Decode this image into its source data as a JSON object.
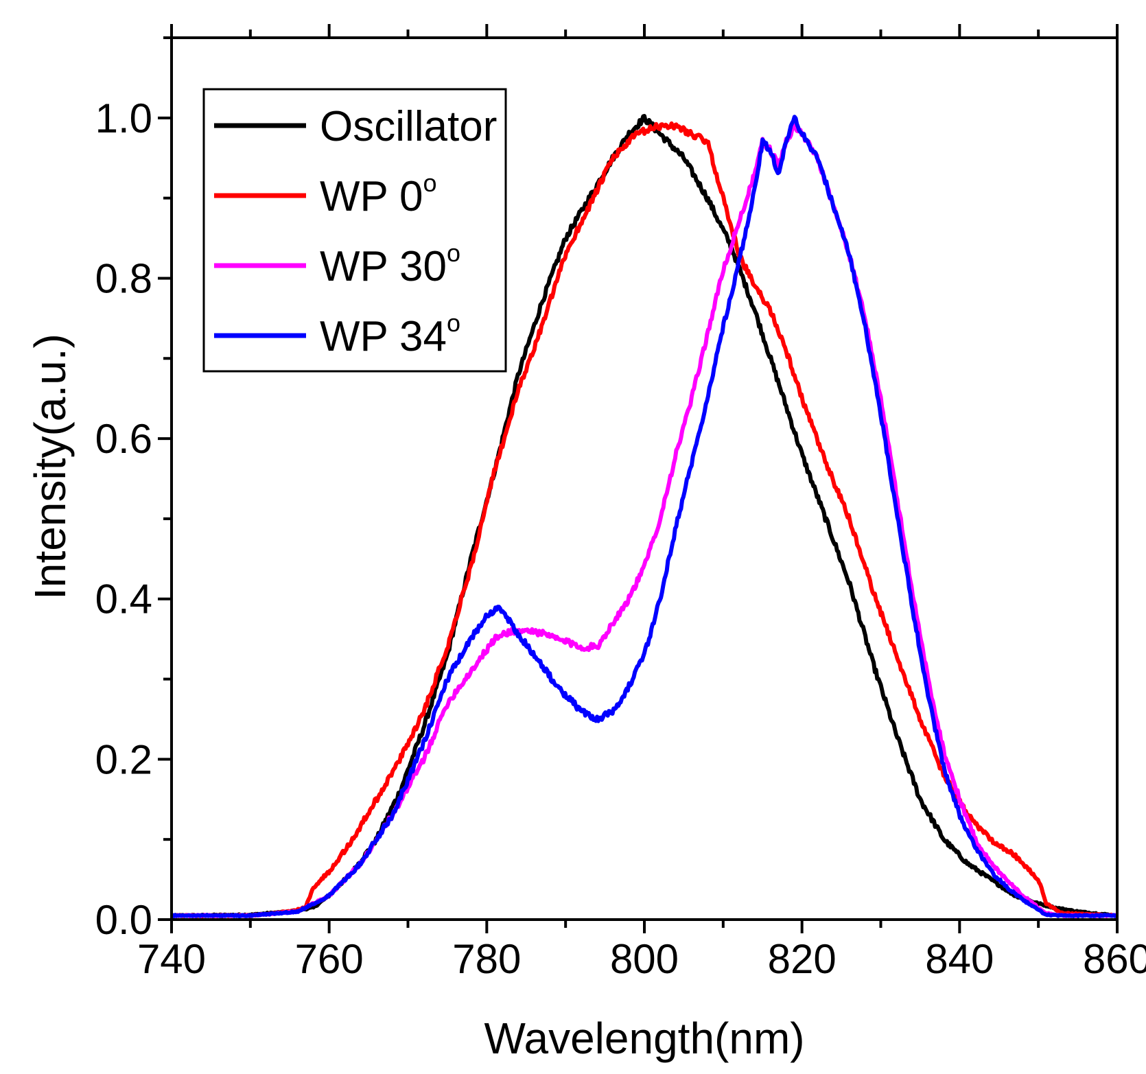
{
  "chart_data": {
    "type": "line",
    "title": "",
    "xlabel": "Wavelength(nm)",
    "ylabel": "Intensity(a.u.)",
    "xlim": [
      740,
      860
    ],
    "ylim": [
      0,
      1.1
    ],
    "xticks": [
      740,
      760,
      780,
      800,
      820,
      840,
      860
    ],
    "xtick_labels": [
      "740",
      "760",
      "780",
      "800",
      "820",
      "840",
      "860"
    ],
    "yticks": [
      0.0,
      0.2,
      0.4,
      0.6,
      0.8,
      1.0
    ],
    "ytick_labels": [
      "0.0",
      "0.2",
      "0.4",
      "0.6",
      "0.8",
      "1.0"
    ],
    "x_minor_step": 10,
    "y_minor_step": 0.1,
    "grid": false,
    "legend_position": "top-left",
    "series": [
      {
        "name": "Oscillator",
        "label": "Oscillator",
        "sup": "",
        "color": "#000000",
        "x": [
          740,
          750,
          755,
          758,
          760,
          763,
          766,
          769,
          772,
          775,
          778,
          781,
          784,
          787,
          790,
          793,
          796,
          798,
          800,
          802,
          805,
          808,
          811,
          814,
          817,
          820,
          823,
          826,
          829,
          832,
          835,
          838,
          841,
          844,
          847,
          850,
          852,
          855,
          860
        ],
        "y": [
          0.005,
          0.006,
          0.01,
          0.015,
          0.03,
          0.06,
          0.1,
          0.16,
          0.24,
          0.33,
          0.45,
          0.56,
          0.68,
          0.77,
          0.85,
          0.9,
          0.95,
          0.98,
          1.0,
          0.98,
          0.95,
          0.9,
          0.84,
          0.76,
          0.67,
          0.58,
          0.5,
          0.42,
          0.32,
          0.23,
          0.15,
          0.1,
          0.07,
          0.05,
          0.03,
          0.02,
          0.015,
          0.01,
          0.005
        ]
      },
      {
        "name": "WP 0",
        "label": "WP 0",
        "sup": "o",
        "color": "#ff0000",
        "x": [
          740,
          750,
          755,
          757,
          758,
          760,
          763,
          766,
          769,
          772,
          775,
          778,
          781,
          784,
          787,
          790,
          793,
          796,
          799,
          802,
          804,
          806,
          808,
          810,
          812,
          814,
          816,
          818,
          820,
          823,
          826,
          829,
          832,
          835,
          838,
          841,
          844,
          847,
          849,
          850,
          851,
          853,
          860
        ],
        "y": [
          0.005,
          0.005,
          0.01,
          0.015,
          0.04,
          0.06,
          0.1,
          0.15,
          0.2,
          0.26,
          0.34,
          0.44,
          0.56,
          0.66,
          0.74,
          0.83,
          0.89,
          0.95,
          0.98,
          0.99,
          0.99,
          0.98,
          0.97,
          0.9,
          0.83,
          0.79,
          0.76,
          0.71,
          0.65,
          0.57,
          0.5,
          0.41,
          0.33,
          0.25,
          0.18,
          0.13,
          0.1,
          0.08,
          0.06,
          0.05,
          0.02,
          0.008,
          0.005
        ]
      },
      {
        "name": "WP 30",
        "label": "WP 30",
        "sup": "o",
        "color": "#ff00ff",
        "x": [
          740,
          750,
          756,
          760,
          764,
          768,
          772,
          775,
          778,
          781,
          783,
          786,
          789,
          792,
          794,
          796,
          798,
          800,
          802,
          804,
          806,
          808,
          810,
          812,
          814,
          815,
          816,
          817,
          818,
          819,
          820,
          822,
          824,
          826,
          828,
          830,
          832,
          834,
          836,
          838,
          840,
          842,
          844,
          846,
          848,
          850,
          851,
          853,
          860
        ],
        "y": [
          0.005,
          0.005,
          0.01,
          0.03,
          0.07,
          0.13,
          0.2,
          0.27,
          0.31,
          0.35,
          0.36,
          0.36,
          0.35,
          0.34,
          0.34,
          0.37,
          0.4,
          0.44,
          0.5,
          0.58,
          0.65,
          0.73,
          0.81,
          0.87,
          0.93,
          0.97,
          0.96,
          0.94,
          0.97,
          0.99,
          0.98,
          0.95,
          0.89,
          0.83,
          0.75,
          0.65,
          0.53,
          0.41,
          0.3,
          0.21,
          0.15,
          0.1,
          0.07,
          0.05,
          0.03,
          0.015,
          0.008,
          0.005,
          0.005
        ]
      },
      {
        "name": "WP 34",
        "label": "WP 34",
        "sup": "o",
        "color": "#0000ff",
        "x": [
          740,
          750,
          756,
          760,
          764,
          768,
          772,
          775,
          778,
          780,
          781.5,
          783,
          786,
          789,
          792,
          794,
          796,
          798,
          800,
          802,
          804,
          806,
          808,
          810,
          812,
          814,
          815,
          816,
          817,
          818,
          819,
          820,
          822,
          824,
          826,
          828,
          830,
          832,
          834,
          836,
          838,
          840,
          842,
          844,
          846,
          848,
          850,
          851,
          853,
          860
        ],
        "y": [
          0.005,
          0.005,
          0.01,
          0.03,
          0.07,
          0.13,
          0.22,
          0.3,
          0.35,
          0.38,
          0.39,
          0.37,
          0.33,
          0.29,
          0.26,
          0.25,
          0.26,
          0.29,
          0.33,
          0.4,
          0.49,
          0.57,
          0.65,
          0.74,
          0.82,
          0.91,
          0.97,
          0.96,
          0.93,
          0.97,
          1.0,
          0.98,
          0.95,
          0.89,
          0.83,
          0.74,
          0.63,
          0.51,
          0.39,
          0.28,
          0.19,
          0.13,
          0.09,
          0.06,
          0.04,
          0.025,
          0.012,
          0.006,
          0.005,
          0.005
        ]
      }
    ]
  }
}
